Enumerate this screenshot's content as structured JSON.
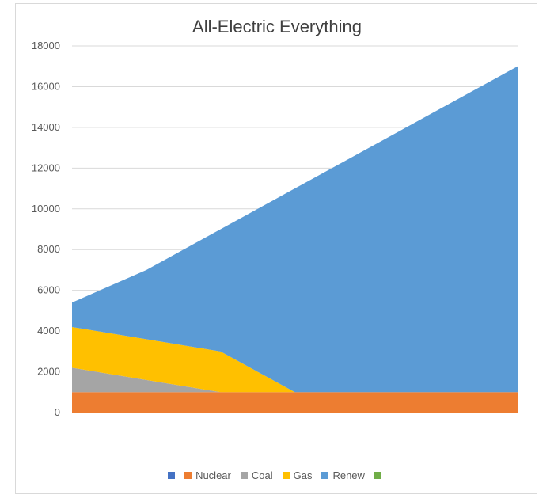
{
  "chart_data": {
    "type": "area",
    "stacked": true,
    "title": "All-Electric Everything",
    "xlabel": "",
    "ylabel": "",
    "ylim": [
      0,
      18000
    ],
    "yticks": [
      0,
      2000,
      4000,
      6000,
      8000,
      10000,
      12000,
      14000,
      16000,
      18000
    ],
    "x": [
      0,
      1,
      2,
      3,
      4,
      5,
      6
    ],
    "grid": true,
    "legend_position": "bottom",
    "series": [
      {
        "name": "",
        "color": "#4472c4",
        "values": [
          0,
          0,
          0,
          0,
          0,
          0,
          0
        ]
      },
      {
        "name": "Nuclear",
        "color": "#ed7d31",
        "values": [
          1000,
          1000,
          1000,
          1000,
          1000,
          1000,
          1000
        ]
      },
      {
        "name": "Coal",
        "color": "#a5a5a5",
        "values": [
          1200,
          600,
          0,
          0,
          0,
          0,
          0
        ]
      },
      {
        "name": "Gas",
        "color": "#ffc000",
        "values": [
          2000,
          2000,
          2000,
          0,
          0,
          0,
          0
        ]
      },
      {
        "name": "Renew",
        "color": "#5b9bd5",
        "values": [
          1200,
          3400,
          6000,
          10000,
          12000,
          14000,
          16000
        ]
      },
      {
        "name": "",
        "color": "#70ad47",
        "values": [
          0,
          0,
          0,
          0,
          0,
          0,
          0
        ]
      }
    ]
  }
}
